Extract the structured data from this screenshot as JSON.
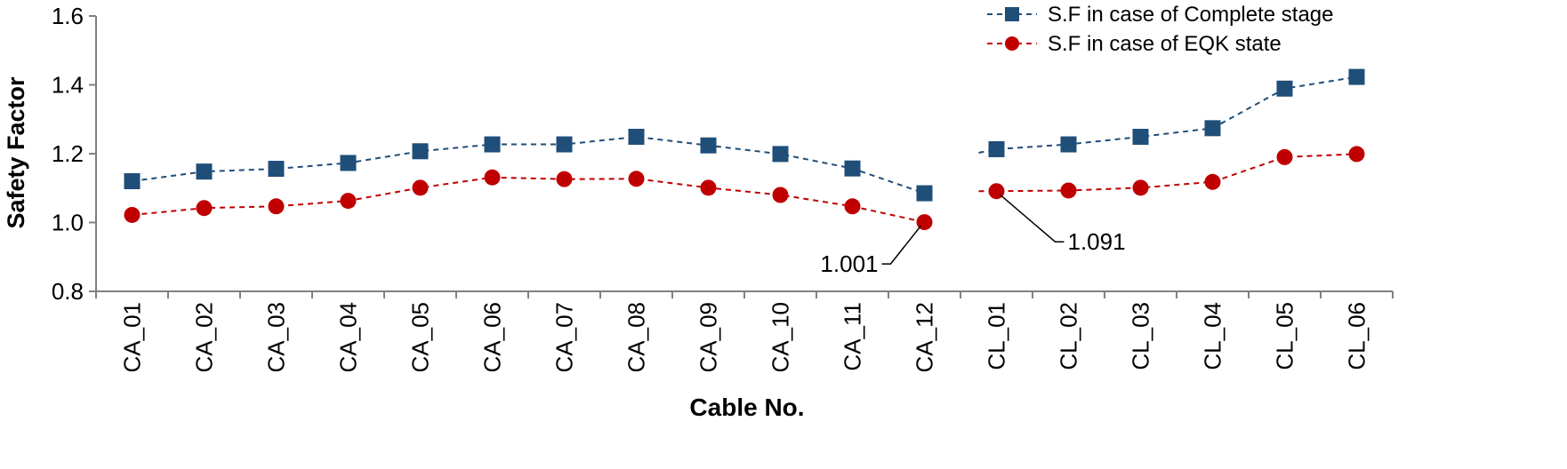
{
  "chart_data": {
    "type": "line",
    "xlabel": "Cable No.",
    "ylabel": "Safety Factor",
    "ylim": [
      0.8,
      1.6
    ],
    "yticks": [
      "0.8",
      "1.0",
      "1.2",
      "1.4",
      "1.6"
    ],
    "grid": false,
    "legend_position": "top-right",
    "categories": [
      "CA_01",
      "CA_02",
      "CA_03",
      "CA_04",
      "CA_05",
      "CA_06",
      "CA_07",
      "CA_08",
      "CA_09",
      "CA_10",
      "CA_11",
      "CA_12",
      "CL_01",
      "CL_02",
      "CL_03",
      "CL_04",
      "CL_05",
      "CL_06"
    ],
    "series": [
      {
        "name": "S.F in case of Complete stage",
        "color": "#1F4E79",
        "marker": "square",
        "values": [
          1.12,
          1.148,
          1.156,
          1.173,
          1.207,
          1.227,
          1.227,
          1.249,
          1.224,
          1.199,
          1.157,
          1.085,
          1.213,
          1.227,
          1.249,
          1.274,
          1.389,
          1.423
        ]
      },
      {
        "name": "S.F in case of EQK state",
        "color": "#C00000",
        "marker": "circle",
        "values": [
          1.022,
          1.042,
          1.047,
          1.063,
          1.101,
          1.131,
          1.126,
          1.127,
          1.101,
          1.08,
          1.047,
          1.001,
          1.091,
          1.093,
          1.101,
          1.118,
          1.19,
          1.199
        ]
      }
    ],
    "segment_break_after_index": 11,
    "annotations": [
      {
        "text": "1.001",
        "series": 1,
        "index": 11
      },
      {
        "text": "1.091",
        "series": 1,
        "index": 12
      }
    ]
  }
}
